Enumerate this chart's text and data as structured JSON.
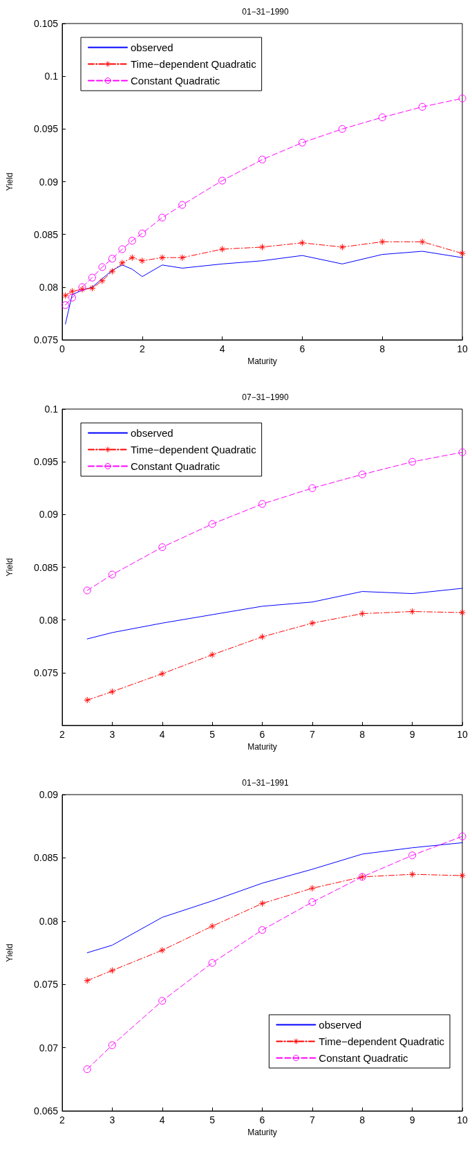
{
  "chart_data": [
    {
      "type": "line",
      "title": "01−31−1990",
      "xlabel": "Maturity",
      "ylabel": "Yield",
      "x": [
        0.08,
        0.25,
        0.5,
        0.75,
        1,
        1.25,
        1.5,
        1.75,
        2,
        2.5,
        3,
        4,
        5,
        6,
        7,
        8,
        9,
        10
      ],
      "xlim": [
        0,
        10
      ],
      "xticks": [
        0,
        2,
        4,
        6,
        8,
        10
      ],
      "ylim": [
        0.075,
        0.105
      ],
      "yticks": [
        0.075,
        0.08,
        0.085,
        0.09,
        0.095,
        0.1,
        0.105
      ],
      "legend": "top left",
      "grid": false,
      "series": [
        {
          "name": "observed",
          "color": "#0000ff",
          "line_style": "solid",
          "marker": "none",
          "values": [
            0.0765,
            0.0793,
            0.0797,
            0.08,
            0.0808,
            0.0816,
            0.0821,
            0.0817,
            0.081,
            0.0821,
            0.0818,
            0.0822,
            0.0825,
            0.083,
            0.0822,
            0.0831,
            0.0834,
            0.0828
          ]
        },
        {
          "name": "Time−dependent Quadratic",
          "color": "#ff0000",
          "line_style": "dashdot",
          "marker": "cross",
          "values": [
            0.0792,
            0.0796,
            0.0798,
            0.0799,
            0.0806,
            0.0815,
            0.0823,
            0.0828,
            0.0825,
            0.0828,
            0.0828,
            0.0836,
            0.0838,
            0.0842,
            0.0838,
            0.0843,
            0.0843,
            0.0832
          ]
        },
        {
          "name": "Constant Quadratic",
          "color": "#ff00ff",
          "line_style": "dashed",
          "marker": "circle",
          "values": [
            0.0783,
            0.079,
            0.08,
            0.0809,
            0.0819,
            0.0827,
            0.0836,
            0.0844,
            0.0851,
            0.0866,
            0.0878,
            0.0901,
            0.0921,
            0.0937,
            0.095,
            0.0961,
            0.0971,
            0.0979
          ]
        }
      ]
    },
    {
      "type": "line",
      "title": "07−31−1990",
      "xlabel": "Maturity",
      "ylabel": "Yield",
      "x": [
        2.5,
        3,
        4,
        5,
        6,
        7,
        8,
        9,
        10
      ],
      "xlim": [
        2,
        10
      ],
      "xticks": [
        2,
        3,
        4,
        5,
        6,
        7,
        8,
        9,
        10
      ],
      "ylim": [
        0.07,
        0.1
      ],
      "yticks": [
        0.075,
        0.08,
        0.085,
        0.09,
        0.095,
        0.1
      ],
      "legend": "top left",
      "grid": false,
      "series": [
        {
          "name": "observed",
          "color": "#0000ff",
          "line_style": "solid",
          "marker": "none",
          "values": [
            0.0782,
            0.0788,
            0.0797,
            0.0805,
            0.0813,
            0.0817,
            0.0827,
            0.0825,
            0.083
          ]
        },
        {
          "name": "Time−dependent Quadratic",
          "color": "#ff0000",
          "line_style": "dashdot",
          "marker": "cross",
          "values": [
            0.0724,
            0.0732,
            0.0749,
            0.0767,
            0.0784,
            0.0797,
            0.0806,
            0.0808,
            0.0807
          ]
        },
        {
          "name": "Constant Quadratic",
          "color": "#ff00ff",
          "line_style": "dashed",
          "marker": "circle",
          "values": [
            0.0828,
            0.0843,
            0.0869,
            0.0891,
            0.091,
            0.0925,
            0.0938,
            0.095,
            0.0959
          ]
        }
      ]
    },
    {
      "type": "line",
      "title": "01−31−1991",
      "xlabel": "Maturity",
      "ylabel": "Yield",
      "x": [
        2.5,
        3,
        4,
        5,
        6,
        7,
        8,
        9,
        10
      ],
      "xlim": [
        2,
        10
      ],
      "xticks": [
        2,
        3,
        4,
        5,
        6,
        7,
        8,
        9,
        10
      ],
      "ylim": [
        0.065,
        0.09
      ],
      "yticks": [
        0.065,
        0.07,
        0.075,
        0.08,
        0.085,
        0.09
      ],
      "legend": "bottom right",
      "grid": false,
      "series": [
        {
          "name": "observed",
          "color": "#0000ff",
          "line_style": "solid",
          "marker": "none",
          "values": [
            0.0775,
            0.0781,
            0.0803,
            0.0816,
            0.083,
            0.0841,
            0.0853,
            0.0858,
            0.0862
          ]
        },
        {
          "name": "Time−dependent Quadratic",
          "color": "#ff0000",
          "line_style": "dashdot",
          "marker": "cross",
          "values": [
            0.0753,
            0.0761,
            0.0777,
            0.0796,
            0.0814,
            0.0826,
            0.0835,
            0.0837,
            0.0836
          ]
        },
        {
          "name": "Constant Quadratic",
          "color": "#ff00ff",
          "line_style": "dashed",
          "marker": "circle",
          "values": [
            0.0683,
            0.0702,
            0.0737,
            0.0767,
            0.0793,
            0.0815,
            0.0835,
            0.0852,
            0.0867
          ]
        }
      ]
    }
  ]
}
